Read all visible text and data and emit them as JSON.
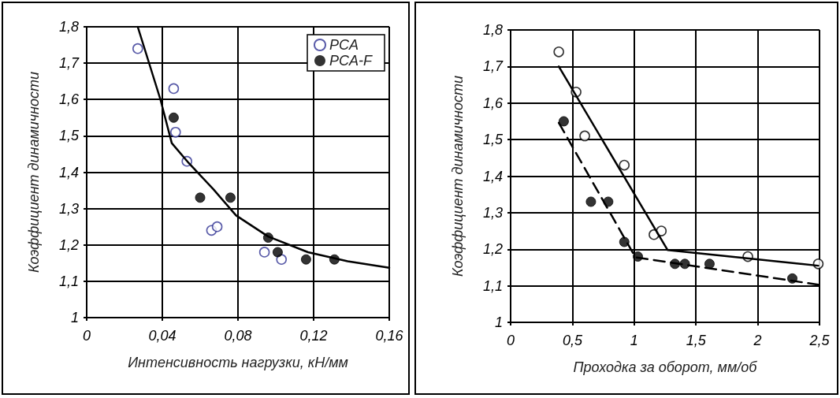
{
  "chart_data": [
    {
      "type": "scatter",
      "xlabel": "Интенсивность нагрузки, кН/мм",
      "ylabel": "Коэффициент динамичности",
      "legend": "top right",
      "grid": true,
      "marker": "circle",
      "xlim": [
        0,
        0.16
      ],
      "xticks": [
        0,
        {
          "value": 0.04,
          "label": "0,04"
        },
        {
          "value": 0.08,
          "label": "0,08"
        },
        {
          "value": 0.12,
          "label": "0,12"
        },
        {
          "value": 0.16,
          "label": "0,16"
        }
      ],
      "ylim": [
        1,
        1.8
      ],
      "yticks": [
        1,
        {
          "value": 1.1,
          "label": "1,1"
        },
        {
          "value": 1.2,
          "label": "1,2"
        },
        {
          "value": 1.3,
          "label": "1,3"
        },
        {
          "value": 1.4,
          "label": "1,4"
        },
        {
          "value": 1.5,
          "label": "1,5"
        },
        {
          "value": 1.6,
          "label": "1,6"
        },
        {
          "value": 1.7,
          "label": "1,7"
        },
        {
          "value": 1.8,
          "label": "1,8"
        }
      ],
      "series": [
        {
          "name": "PCA",
          "color": "#2e3192",
          "x": [
            0.027,
            0.046,
            0.047,
            0.053,
            0.066,
            0.069,
            0.094,
            0.103
          ],
          "values": [
            1.74,
            1.63,
            1.51,
            1.43,
            1.24,
            1.25,
            1.18,
            1.16
          ]
        },
        {
          "name": "PCA-F",
          "color": "#000000",
          "x": [
            0.046,
            0.06,
            0.076,
            0.096,
            0.101,
            0.116,
            0.131
          ],
          "values": [
            1.55,
            1.33,
            1.33,
            1.22,
            1.18,
            1.16,
            1.16
          ]
        },
        {
          "type": "line",
          "color": "#000000",
          "line_style": "solid",
          "marker": "none",
          "x": [
            0.027,
            0.039,
            0.045,
            0.054,
            0.067,
            0.079,
            0.096,
            0.117,
            0.138,
            0.16
          ],
          "values": [
            1.8,
            1.6,
            1.48,
            1.425,
            1.353,
            1.281,
            1.223,
            1.18,
            1.155,
            1.137
          ]
        }
      ]
    },
    {
      "type": "scatter",
      "xlabel": "Проходка за оборот, мм/об",
      "ylabel": "Коэффициент динамичности",
      "grid": true,
      "marker": "circle",
      "xlim": [
        0,
        2.5
      ],
      "xticks": [
        0,
        {
          "value": 0.5,
          "label": "0,5"
        },
        1,
        {
          "value": 1.5,
          "label": "1,5"
        },
        2,
        {
          "value": 2.5,
          "label": "2,5"
        }
      ],
      "ylim": [
        1,
        1.8
      ],
      "yticks": [
        1,
        {
          "value": 1.1,
          "label": "1,1"
        },
        {
          "value": 1.2,
          "label": "1,2"
        },
        {
          "value": 1.3,
          "label": "1,3"
        },
        {
          "value": 1.4,
          "label": "1,4"
        },
        {
          "value": 1.5,
          "label": "1,5"
        },
        {
          "value": 1.6,
          "label": "1,6"
        },
        {
          "value": 1.7,
          "label": "1,7"
        },
        {
          "value": 1.8,
          "label": "1,8"
        }
      ],
      "series": [
        {
          "color": "#000000",
          "x": [
            0.39,
            0.53,
            0.6,
            0.92,
            1.16,
            1.22,
            1.92,
            2.49
          ],
          "values": [
            1.74,
            1.63,
            1.51,
            1.43,
            1.24,
            1.25,
            1.18,
            1.16
          ]
        },
        {
          "color": "#000000",
          "x": [
            0.43,
            0.65,
            0.79,
            0.92,
            1.03,
            1.33,
            1.41,
            1.61,
            2.28
          ],
          "values": [
            1.55,
            1.33,
            1.33,
            1.22,
            1.18,
            1.16,
            1.16,
            1.16,
            1.12
          ]
        },
        {
          "type": "line",
          "color": "#000000",
          "line_style": "solid",
          "marker": "none",
          "x": [
            0.39,
            1.27,
            2.49
          ],
          "values": [
            1.7,
            1.198,
            1.155
          ]
        },
        {
          "type": "line",
          "color": "#000000",
          "line_style": "dashed",
          "marker": "none",
          "x": [
            0.39,
            1.01,
            2.49
          ],
          "values": [
            1.546,
            1.178,
            1.103
          ]
        }
      ]
    }
  ]
}
